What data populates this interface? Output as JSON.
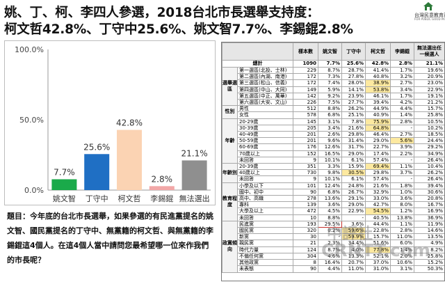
{
  "header": {
    "title_line1": "姚、丁、柯、李四人參選，2018台北市長選舉支持度：",
    "title_line2": "柯文哲42.8%、丁守中25.6%、姚文智7.7%、李錫錕2.8%",
    "logo_text": "台灣民意教育基金會",
    "logo_sub": "FOR PUBLIC GOOD PARTY"
  },
  "chart_data": {
    "type": "bar",
    "categories": [
      "姚文智",
      "丁守中",
      "柯文哲",
      "李錫錕",
      "無法選出\n任一候選人"
    ],
    "values": [
      7.7,
      25.6,
      42.8,
      2.8,
      21.1
    ],
    "value_labels": [
      "7.7%",
      "25.6%",
      "42.8%",
      "2.8%",
      "21.1%"
    ],
    "colors": [
      "#1aaa4a",
      "#1f6fc4",
      "#fbd3b3",
      "#f2a7a7",
      "#8f8f8f"
    ],
    "ylim": [
      0,
      100
    ],
    "yticks": [
      0,
      50,
      100
    ],
    "ytick_labels": [
      "0.0%",
      "50.0%",
      "100.0%"
    ],
    "grid": false
  },
  "question": {
    "text": "題目：今年底的台北市長選舉，如果參選的有民進黨提名的姚文智、國民黨提名的丁守中、無黨籍的柯文哲、與無黨籍的李錫錕這4個人。在這4個人當中請問您最希望哪一位來作我們的市長呢？"
  },
  "table": {
    "headers": [
      "",
      "",
      "樣本數",
      "姚文智",
      "丁守中",
      "柯文哲",
      "李錫錕",
      "無法選出任一候選人"
    ],
    "total": {
      "label": "總計",
      "values": [
        "1090",
        "7.7%",
        "25.6%",
        "42.8%",
        "2.8%",
        "21.1%"
      ]
    },
    "groups": [
      {
        "name": "選舉選區",
        "rows": [
          {
            "label": "第一選區(北投、士林)",
            "values": [
              "229",
              "8.7%",
              "28.7%",
              "41.4%",
              "1.7%",
              "19.6%"
            ]
          },
          {
            "label": "第二選區(內湖、南港)",
            "values": [
              "172",
              "7.3%",
              "27.8%",
              "40.8%",
              "3.2%",
              "20.9%"
            ]
          },
          {
            "label": "第三選區(松山、信義)",
            "values": [
              "172",
              "7.4%",
              "28.0%",
              "38.9%",
              "2.7%",
              "23.0%"
            ]
          },
          {
            "label": "第四選區(中山、大同)",
            "values": [
              "149",
              "5.9%",
              "14.1%",
              "53.8%",
              "3.4%",
              "22.9%"
            ]
          },
          {
            "label": "第五選區(中正、萬華)",
            "values": [
              "142",
              "9.2%",
              "23.9%",
              "46.1%",
              "1.7%",
              "19.1%"
            ]
          },
          {
            "label": "第六選區(大安、文山)",
            "values": [
              "226",
              "7.5%",
              "27.7%",
              "39.4%",
              "4.2%",
              "21.2%"
            ]
          }
        ]
      },
      {
        "name": "性別",
        "rows": [
          {
            "label": "男性",
            "values": [
              "512",
              "8.8%",
              "26.2%",
              "44.9%",
              "4.4%",
              "15.7%"
            ]
          },
          {
            "label": "女性",
            "values": [
              "578",
              "6.8%",
              "25.1%",
              "40.9%",
              "1.4%",
              "25.8%"
            ]
          }
        ]
      },
      {
        "name": "年齡",
        "rows": [
          {
            "label": "20-29歲",
            "values": [
              "145",
              "3.1%",
              "7.8%",
              "75.9%",
              "2.8%",
              "10.5%"
            ]
          },
          {
            "label": "30-39歲",
            "values": [
              "205",
              "3.4%",
              "21.6%",
              "64.8%",
              "-",
              "10.2%"
            ]
          },
          {
            "label": "40-49歲",
            "values": [
              "201",
              "2.6%",
              "29.8%",
              "46.4%",
              "2.7%",
              "18.5%"
            ]
          },
          {
            "label": "50-59歲",
            "values": [
              "201",
              "9.6%",
              "31.4%",
              "29.0%",
              "5.6%",
              "24.4%"
            ]
          },
          {
            "label": "60-69歲",
            "values": [
              "176",
              "12.6%",
              "31.7%",
              "22.7%",
              "3.9%",
              "29.2%"
            ]
          },
          {
            "label": "70歲以上",
            "values": [
              "152",
              "16.5%",
              "29.0%",
              "17.4%",
              "2.2%",
              "34.9%"
            ]
          },
          {
            "label": "未回答",
            "values": [
              "9",
              "10.1%",
              "6.1%",
              "57.4%",
              "-",
              "26.4%"
            ]
          }
        ]
      },
      {
        "name": "年齡別",
        "rows": [
          {
            "label": "20-39歲",
            "values": [
              "351",
              "3.3%",
              "15.9%",
              "69.4%",
              "1.1%",
              "10.4%"
            ]
          },
          {
            "label": "40歲以上",
            "values": [
              "730",
              "9.8%",
              "30.5%",
              "29.8%",
              "3.7%",
              "26.2%"
            ]
          },
          {
            "label": "未回答",
            "values": [
              "9",
              "10.1%",
              "6.1%",
              "57.4%",
              "-",
              "26.4%"
            ]
          }
        ]
      },
      {
        "name": "教育程度",
        "rows": [
          {
            "label": "小學及以下",
            "values": [
              "101",
              "12.4%",
              "24.8%",
              "21.6%",
              "1.8%",
              "39.4%"
            ]
          },
          {
            "label": "國中、初中",
            "values": [
              "90",
              "6.8%",
              "26.7%",
              "32.9%",
              "1.0%",
              "30.6%"
            ]
          },
          {
            "label": "高中、高職",
            "values": [
              "278",
              "13.6%",
              "29.1%",
              "33.0%",
              "3.6%",
              "20.8%"
            ]
          },
          {
            "label": "專科",
            "values": [
              "139",
              "3.6%",
              "29.0%",
              "42.7%",
              "8.0%",
              "16.7%"
            ]
          },
          {
            "label": "大學及以上",
            "values": [
              "472",
              "4.5%",
              "22.9%",
              "54.5%",
              "1.2%",
              "16.9%"
            ]
          },
          {
            "label": "未回答",
            "values": [
              "10",
              "8.8%",
              "-",
              "40.5%",
              "13.8%",
              "36.9%"
            ]
          }
        ]
      },
      {
        "name": "政黨傾向",
        "rows": [
          {
            "label": "民進黨",
            "values": [
              "193",
              "29.5%",
              "3.6%",
              "44.4%",
              "1.1%",
              "11.9%"
            ]
          },
          {
            "label": "國民黨",
            "values": [
              "320",
              "0.2%",
              "59.6%",
              "22.8%",
              "2.8%",
              "14.6%"
            ]
          },
          {
            "label": "新黨",
            "values": [
              "30",
              "-",
              "59.9%",
              "15.7%",
              "11.0%",
              "13.5%"
            ]
          },
          {
            "label": "親民黨",
            "values": [
              "21",
              "2.3%",
              "34.4%",
              "51.6%",
              "6.0%",
              "4.9%"
            ]
          },
          {
            "label": "時代力量",
            "values": [
              "124",
              "8.7%",
              "4.0%",
              "77.8%",
              "1.4%",
              "8.2%"
            ]
          },
          {
            "label": "不偏任何黨",
            "values": [
              "304",
              "4.6%",
              "13.3%",
              "52.1%",
              "2.0%",
              "25.8%"
            ]
          },
          {
            "label": "其他政黨",
            "values": [
              "8",
              "16.4%",
              "20.7%",
              "37.0%",
              "10.6%",
              "15.2%"
            ]
          },
          {
            "label": "未表態",
            "values": [
              "90",
              "4.4%",
              "11.0%",
              "31.0%",
              "3.1%",
              "50.3%"
            ]
          }
        ]
      }
    ]
  },
  "watermark": {
    "line1": "中評社",
    "line2": "CRNTT.com"
  }
}
